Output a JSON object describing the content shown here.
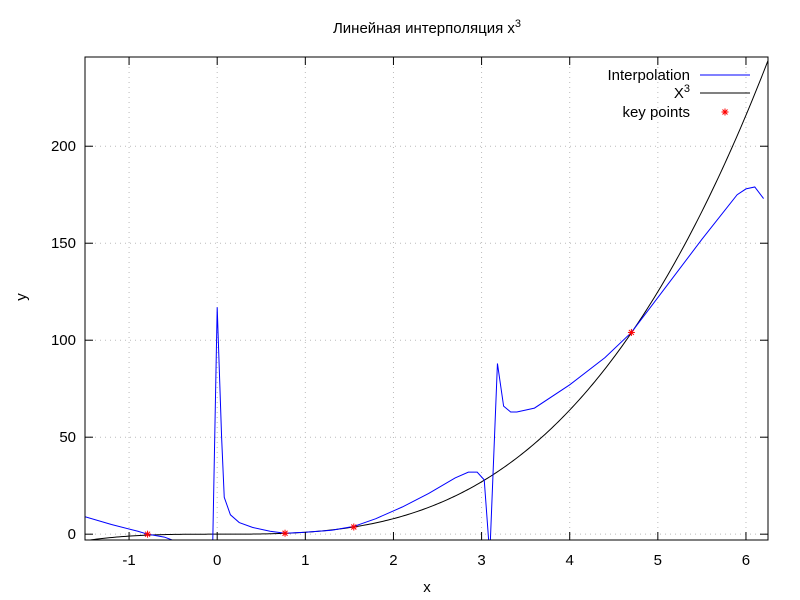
{
  "chart_data": {
    "type": "line",
    "title": "Линейная интерполяция x",
    "title_superscript": "3",
    "xlabel": "x",
    "ylabel": "y",
    "xlim": [
      -1.5,
      6.25
    ],
    "ylim": [
      -3,
      246
    ],
    "grid": true,
    "legend_position": "top-right",
    "x_ticks": [
      -1,
      0,
      1,
      2,
      3,
      4,
      5,
      6
    ],
    "x_tick_labels": [
      "-1",
      "0",
      "1",
      "2",
      "3",
      "4",
      "5",
      "6"
    ],
    "y_ticks": [
      0,
      50,
      100,
      150,
      200
    ],
    "y_tick_labels": [
      "0",
      "50",
      "100",
      "150",
      "200"
    ],
    "series": [
      {
        "name": "Interpolation",
        "color": "#0000ff",
        "x": [
          -1.5,
          -1.2,
          -0.9,
          -0.79,
          -0.6,
          -0.45,
          -0.45,
          -0.05,
          -0.05,
          0.0,
          0.05,
          0.08,
          0.15,
          0.25,
          0.4,
          0.6,
          0.77,
          1.0,
          1.3,
          1.55,
          1.8,
          2.1,
          2.4,
          2.7,
          2.85,
          2.95,
          3.03,
          3.08,
          3.1,
          3.18,
          3.25,
          3.33,
          3.4,
          3.6,
          4.0,
          4.4,
          4.7,
          5.1,
          5.5,
          5.9,
          6.0,
          6.1,
          6.2
        ],
        "y": [
          9,
          5,
          1.5,
          0,
          -1.5,
          -4,
          -3,
          -3,
          -3,
          117,
          50,
          19,
          10,
          6,
          3.5,
          1.5,
          0.5,
          1,
          2,
          4,
          8,
          14,
          21,
          29,
          32,
          32,
          28,
          -3,
          -3,
          88,
          66,
          63,
          63,
          65,
          77,
          91,
          104,
          128,
          152,
          175,
          178,
          179,
          173
        ]
      },
      {
        "name": "X",
        "name_superscript": "3",
        "color": "#000000",
        "function": "x^3",
        "x_range": [
          -1.5,
          6.25
        ]
      },
      {
        "name": "key points",
        "color": "#ff0000",
        "marker": "asterisk",
        "x": [
          -0.79,
          0.77,
          1.55,
          4.7
        ],
        "y": [
          0,
          0.5,
          3.7,
          104
        ]
      }
    ]
  }
}
